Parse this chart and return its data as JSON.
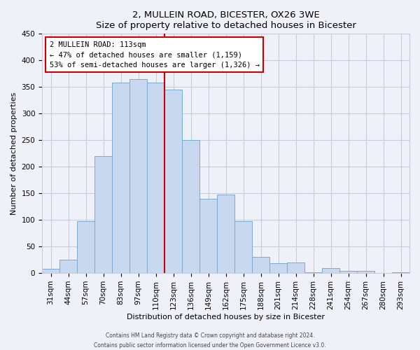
{
  "title": "2, MULLEIN ROAD, BICESTER, OX26 3WE",
  "subtitle": "Size of property relative to detached houses in Bicester",
  "xlabel": "Distribution of detached houses by size in Bicester",
  "ylabel": "Number of detached properties",
  "bar_labels": [
    "31sqm",
    "44sqm",
    "57sqm",
    "70sqm",
    "83sqm",
    "97sqm",
    "110sqm",
    "123sqm",
    "136sqm",
    "149sqm",
    "162sqm",
    "175sqm",
    "188sqm",
    "201sqm",
    "214sqm",
    "228sqm",
    "241sqm",
    "254sqm",
    "267sqm",
    "280sqm",
    "293sqm"
  ],
  "bar_values": [
    8,
    25,
    98,
    220,
    358,
    365,
    358,
    345,
    250,
    140,
    148,
    97,
    30,
    18,
    20,
    2,
    10,
    4,
    4,
    0,
    2
  ],
  "bar_color": "#c8d8ee",
  "bar_edge_color": "#7aabcf",
  "vline_x_idx": 6,
  "vline_color": "#cc0000",
  "annotation_title": "2 MULLEIN ROAD: 113sqm",
  "annotation_line1": "← 47% of detached houses are smaller (1,159)",
  "annotation_line2": "53% of semi-detached houses are larger (1,326) →",
  "annotation_box_color": "white",
  "annotation_box_edge_color": "#cc0000",
  "ylim": [
    0,
    450
  ],
  "yticks": [
    0,
    50,
    100,
    150,
    200,
    250,
    300,
    350,
    400,
    450
  ],
  "footer1": "Contains HM Land Registry data © Crown copyright and database right 2024.",
  "footer2": "Contains public sector information licensed under the Open Government Licence v3.0.",
  "fig_background_color": "#eef2f8",
  "plot_background_color": "#eef2f8",
  "grid_color": "#c8ccd8",
  "title_fontsize": 9.5,
  "axis_label_fontsize": 8,
  "tick_fontsize": 7.5,
  "annotation_fontsize": 7.5
}
